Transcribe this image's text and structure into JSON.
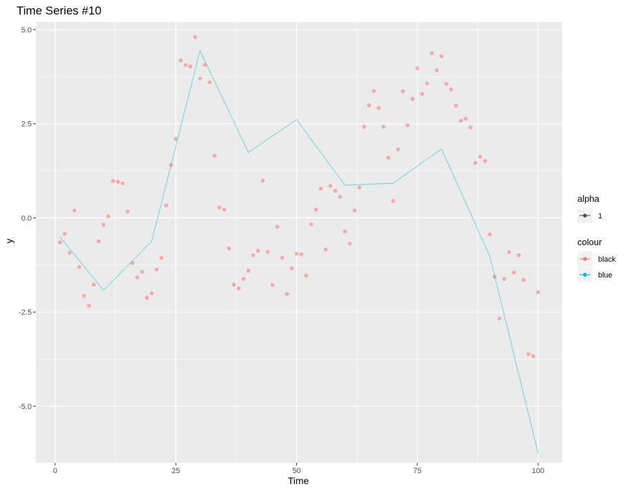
{
  "chart_data": {
    "type": "scatter",
    "title": "Time Series #10",
    "xlabel": "Time",
    "ylabel": "y",
    "xlim": [
      -4,
      105
    ],
    "ylim": [
      -6.5,
      5.2
    ],
    "x_ticks": [
      0,
      25,
      50,
      75,
      100
    ],
    "x_tick_labels": [
      "0",
      "25",
      "50",
      "75",
      "100"
    ],
    "y_ticks": [
      -5.0,
      -2.5,
      0.0,
      2.5,
      5.0
    ],
    "y_tick_labels": [
      "-5.0",
      "-2.5",
      "0.0",
      "2.5",
      "5.0"
    ],
    "grid": true,
    "legend_position": "right",
    "legends": [
      {
        "title": "alpha",
        "entries": [
          {
            "label": "1",
            "color": "#4d4d4d"
          }
        ]
      },
      {
        "title": "colour",
        "entries": [
          {
            "label": "black",
            "color": "#f8766d"
          },
          {
            "label": "blue",
            "color": "#00bfc4"
          }
        ]
      }
    ],
    "series": [
      {
        "name": "black",
        "kind": "points",
        "color": "#f8766d",
        "x": [
          1,
          2,
          3,
          4,
          5,
          6,
          7,
          8,
          9,
          10,
          11,
          12,
          13,
          14,
          15,
          16,
          17,
          18,
          19,
          20,
          21,
          22,
          23,
          24,
          25,
          26,
          27,
          28,
          29,
          30,
          31,
          32,
          33,
          34,
          35,
          36,
          37,
          38,
          39,
          40,
          41,
          42,
          43,
          44,
          45,
          46,
          47,
          48,
          49,
          50,
          51,
          52,
          53,
          54,
          55,
          56,
          57,
          58,
          59,
          60,
          61,
          62,
          63,
          64,
          65,
          66,
          67,
          68,
          69,
          70,
          71,
          72,
          73,
          74,
          75,
          76,
          77,
          78,
          79,
          80,
          81,
          82,
          83,
          84,
          85,
          86,
          87,
          88,
          89,
          90,
          91,
          92,
          93,
          94,
          95,
          96,
          97,
          98,
          99,
          100
        ],
        "y": [
          -0.65,
          -0.42,
          -0.93,
          0.2,
          -1.3,
          -2.07,
          -2.33,
          -1.77,
          -0.62,
          -0.18,
          0.04,
          0.98,
          0.96,
          0.92,
          0.17,
          -1.2,
          -1.58,
          -1.43,
          -2.12,
          -2.0,
          -1.37,
          -1.06,
          0.33,
          1.4,
          2.1,
          4.18,
          4.06,
          4.02,
          4.8,
          3.7,
          4.06,
          3.6,
          1.65,
          0.28,
          0.22,
          -0.81,
          -1.77,
          -1.87,
          -1.62,
          -1.4,
          -0.99,
          -0.87,
          0.99,
          -0.9,
          -1.78,
          -0.23,
          -1.06,
          -2.02,
          -1.34,
          -0.95,
          -0.97,
          -1.53,
          -0.17,
          0.22,
          0.78,
          -0.84,
          0.85,
          0.72,
          0.56,
          -0.36,
          -0.68,
          0.2,
          0.81,
          2.42,
          2.99,
          3.37,
          2.92,
          2.42,
          1.6,
          0.45,
          1.82,
          3.36,
          2.46,
          3.16,
          3.97,
          3.29,
          3.57,
          4.37,
          3.92,
          4.29,
          3.56,
          3.41,
          2.98,
          2.58,
          2.63,
          2.4,
          1.46,
          1.62,
          1.51,
          -0.44,
          -1.56,
          -2.67,
          -1.62,
          -0.91,
          -1.45,
          -0.99,
          -1.65,
          -3.62,
          -3.67,
          -1.97
        ]
      },
      {
        "name": "blue",
        "kind": "line",
        "color": "#00bfc4",
        "x": [
          1,
          10,
          20,
          30,
          40,
          50,
          60,
          70,
          80,
          90,
          100
        ],
        "y": [
          -0.5,
          -1.92,
          -0.62,
          4.44,
          1.74,
          2.61,
          0.87,
          0.92,
          1.83,
          -1.02,
          -6.25
        ]
      }
    ]
  }
}
